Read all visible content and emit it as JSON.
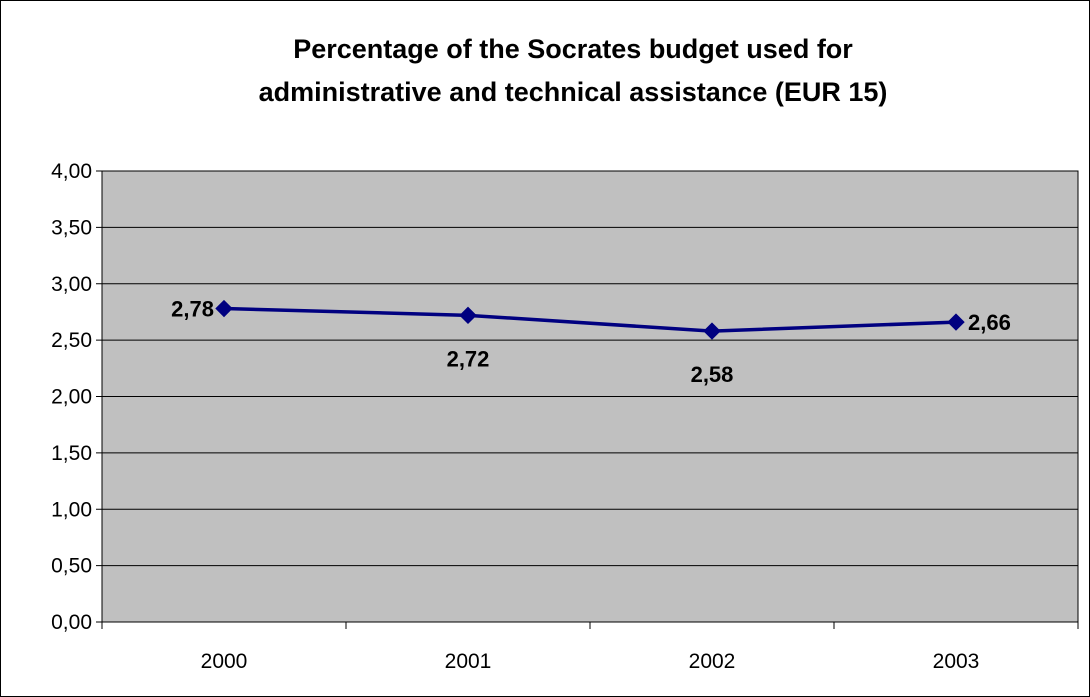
{
  "chart_data": {
    "type": "line",
    "title_lines": [
      "Percentage of the Socrates budget used for",
      "administrative and technical assistance (EUR 15)"
    ],
    "xlabel": "",
    "ylabel": "",
    "categories": [
      "2000",
      "2001",
      "2002",
      "2003"
    ],
    "series": [
      {
        "values": [
          2.78,
          2.72,
          2.58,
          2.66
        ],
        "labels": [
          "2,78",
          "2,72",
          "2,58",
          "2,66"
        ],
        "label_positions": [
          "left",
          "below",
          "below",
          "right"
        ]
      }
    ],
    "ylim": [
      0,
      4
    ],
    "yticks": [
      0,
      0.5,
      1,
      1.5,
      2,
      2.5,
      3,
      3.5,
      4
    ],
    "ytick_labels": [
      "0,00",
      "0,50",
      "1,00",
      "1,50",
      "2,00",
      "2,50",
      "3,00",
      "3,50",
      "4,00"
    ],
    "grid": true,
    "legend": "none",
    "colors": {
      "plot_background": "#c0c0c0",
      "line": "#000080",
      "marker": "#000080",
      "gridline": "#000000",
      "frame": "#000000"
    }
  }
}
